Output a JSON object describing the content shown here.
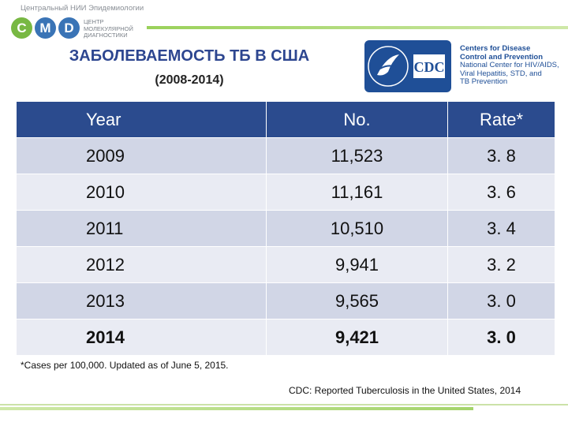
{
  "header": {
    "org_top": "Центральный НИИ Эпидемиологии",
    "logo_letters": [
      "C",
      "M",
      "D"
    ],
    "logo_colors": [
      "#78b843",
      "#3a74b6",
      "#3a74b6"
    ],
    "logo_subtitle": [
      "ЦЕНТР",
      "МОЛЕКУЛЯРНОЙ",
      "ДИАГНОСТИКИ"
    ],
    "title": "ЗАБОЛЕВАЕМОСТЬ ТБ В США",
    "subtitle": "(2008-2014)",
    "cdc": {
      "logo_text": "CDC",
      "line1": "Centers for Disease",
      "line2": "Control and Prevention",
      "line3": "National Center for HIV/AIDS,",
      "line4": "Viral Hepatitis, STD, and",
      "line5": "TB Prevention"
    }
  },
  "table": {
    "headers": [
      "Year",
      "No.",
      "Rate*"
    ],
    "rows": [
      [
        "2009",
        "11,523",
        "3. 8"
      ],
      [
        "2010",
        "11,161",
        "3. 6"
      ],
      [
        "2011",
        "10,510",
        "3. 4"
      ],
      [
        "2012",
        "9,941",
        "3. 2"
      ],
      [
        "2013",
        "9,565",
        "3. 0"
      ],
      [
        "2014",
        "9,421",
        "3. 0"
      ]
    ]
  },
  "footnote": "*Cases per 100,000. Updated as of June 5, 2015.",
  "source": "CDC: Reported Tuberculosis in the United States, 2014"
}
